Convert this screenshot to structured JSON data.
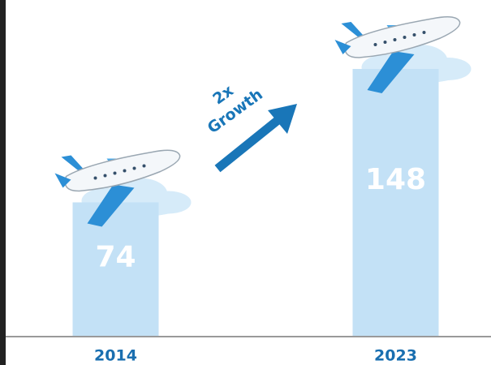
{
  "chart_data": {
    "type": "bar",
    "categories": [
      "2014",
      "2023"
    ],
    "values": [
      74,
      148
    ],
    "color": "#c3e1f6",
    "annotation_lines": [
      "2x",
      "Growth"
    ]
  }
}
